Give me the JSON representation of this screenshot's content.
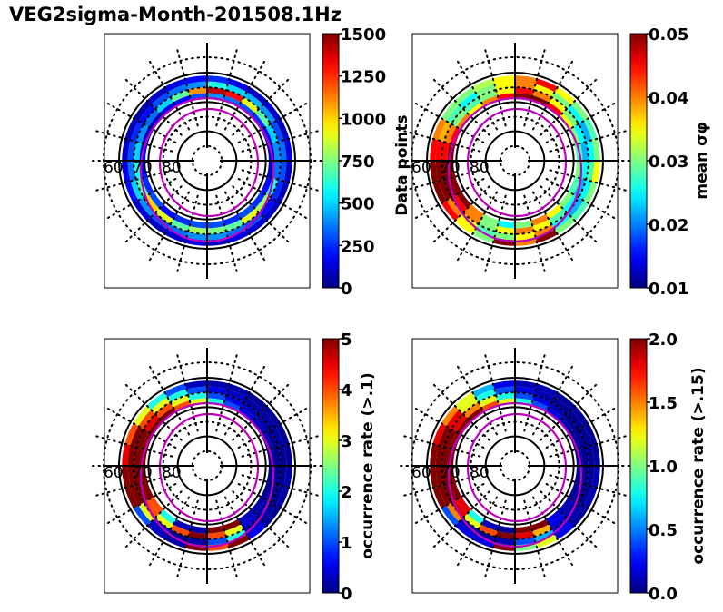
{
  "title": "VEG2sigma-Month-201508.1Hz",
  "chart_data": [
    {
      "type": "heatmap",
      "panel": "top-left",
      "projection": "polar (magnetic latitude vs MLT)",
      "latitude_labels": [
        "60",
        "70",
        "80"
      ],
      "colorbar": {
        "label": "Data points",
        "range": [
          0,
          1500
        ],
        "ticks": [
          "0",
          "250",
          "500",
          "750",
          "1000",
          "1250",
          "1500"
        ],
        "colormap": "jet",
        "position": "right"
      },
      "rings": [
        {
          "lat": 62,
          "values": [
            150,
            120,
            100,
            130,
            200,
            150,
            100,
            80,
            60,
            100,
            150,
            200,
            250,
            150,
            100,
            120,
            100,
            150,
            100,
            80,
            100,
            120,
            150,
            100
          ]
        },
        {
          "lat": 64,
          "values": [
            400,
            350,
            300,
            400,
            500,
            350,
            300,
            250,
            200,
            300,
            350,
            400,
            600,
            500,
            450,
            400,
            300,
            350,
            300,
            250,
            200,
            300,
            350,
            400
          ]
        },
        {
          "lat": 66,
          "values": [
            800,
            700,
            900,
            1000,
            700,
            600,
            500,
            400,
            350,
            500,
            700,
            1100,
            1400,
            1300,
            900,
            700,
            500,
            400,
            350,
            600,
            800,
            900,
            700,
            750
          ]
        },
        {
          "lat": 68,
          "values": [
            300,
            250,
            200,
            300,
            250,
            200,
            150,
            100,
            100,
            150,
            200,
            300,
            400,
            350,
            300,
            250,
            200,
            150,
            100,
            200,
            250,
            300,
            250,
            300
          ]
        }
      ]
    },
    {
      "type": "heatmap",
      "panel": "top-right",
      "projection": "polar (magnetic latitude vs MLT)",
      "latitude_labels": [
        "60",
        "70",
        "80"
      ],
      "colorbar": {
        "label": "mean σφ",
        "range": [
          0.01,
          0.05
        ],
        "ticks": [
          "0.01",
          "0.02",
          "0.03",
          "0.04",
          "0.05"
        ],
        "colormap": "jet",
        "position": "right"
      },
      "rings": [
        {
          "lat": 62,
          "values": [
            0.05,
            0.03,
            0.035,
            0.045,
            0.05,
            0.05,
            0.045,
            0.04,
            0.03,
            0.03,
            0.032,
            0.035,
            0.04,
            0.045,
            0.035,
            0.03,
            0.028,
            0.03,
            0.035,
            0.03,
            0.028,
            0.03,
            0.05,
            0.04
          ]
        },
        {
          "lat": 64,
          "values": [
            0.03,
            0.028,
            0.035,
            0.04,
            0.05,
            0.05,
            0.045,
            0.038,
            0.028,
            0.025,
            0.03,
            0.035,
            0.04,
            0.035,
            0.03,
            0.025,
            0.022,
            0.025,
            0.028,
            0.025,
            0.022,
            0.025,
            0.04,
            0.035
          ]
        },
        {
          "lat": 66,
          "values": [
            0.035,
            0.03,
            0.04,
            0.045,
            0.05,
            0.05,
            0.045,
            0.04,
            0.03,
            0.028,
            0.03,
            0.035,
            0.045,
            0.04,
            0.035,
            0.03,
            0.025,
            0.022,
            0.025,
            0.022,
            0.025,
            0.028,
            0.035,
            0.04
          ]
        },
        {
          "lat": 68,
          "values": [
            0.025,
            0.03,
            0.04,
            0.05,
            0.05,
            0.05,
            0.05,
            0.045,
            0.04,
            0.035,
            0.04,
            0.045,
            0.05,
            0.05,
            0.045,
            0.035,
            0.03,
            0.028,
            0.03,
            0.028,
            0.03,
            0.035,
            0.04,
            0.03
          ]
        }
      ]
    },
    {
      "type": "heatmap",
      "panel": "bottom-left",
      "projection": "polar (magnetic latitude vs MLT)",
      "latitude_labels": [
        "60",
        "70",
        "80"
      ],
      "colorbar": {
        "label": "occurrence rate (>.1)",
        "range": [
          0,
          5
        ],
        "ticks": [
          "0",
          "1",
          "2",
          "3",
          "4",
          "5"
        ],
        "colormap": "jet",
        "position": "right"
      },
      "rings": [
        {
          "lat": 62,
          "values": [
            5,
            0.2,
            0.3,
            1,
            5,
            5,
            4.5,
            4,
            3,
            2,
            1,
            0.3,
            0.2,
            0.2,
            0.1,
            0.1,
            0.1,
            0.1,
            0.2,
            0.2,
            0.1,
            0.5,
            5,
            4
          ]
        },
        {
          "lat": 64,
          "values": [
            0.2,
            0.1,
            0.3,
            3,
            5,
            5,
            5,
            5,
            4,
            3,
            2,
            1,
            0.5,
            0.3,
            0.2,
            0.2,
            0.2,
            0.1,
            0.1,
            0.1,
            0.2,
            0.3,
            2,
            1
          ]
        },
        {
          "lat": 66,
          "values": [
            5,
            4,
            3,
            4,
            5,
            5,
            5,
            5,
            4.5,
            4,
            3,
            2,
            1,
            0.5,
            0.3,
            0.2,
            0.1,
            0.1,
            0.1,
            0.1,
            0.2,
            0.4,
            3,
            4
          ]
        },
        {
          "lat": 68,
          "values": [
            0.2,
            0.3,
            2,
            4,
            5,
            5,
            5,
            5,
            5,
            5,
            4,
            3,
            2,
            1,
            0.5,
            0.3,
            0.2,
            0.1,
            0.1,
            0.1,
            0.2,
            0.3,
            5,
            5
          ]
        }
      ]
    },
    {
      "type": "heatmap",
      "panel": "bottom-right",
      "projection": "polar (magnetic latitude vs MLT)",
      "latitude_labels": [
        "60",
        "70",
        "80"
      ],
      "colorbar": {
        "label": "occurrence rate (>.15)",
        "range": [
          0.0,
          2.0
        ],
        "ticks": [
          "0.0",
          "0.5",
          "1.0",
          "1.5",
          "2.0"
        ],
        "colormap": "jet",
        "position": "right"
      },
      "rings": [
        {
          "lat": 62,
          "values": [
            2,
            0.2,
            0.2,
            0.4,
            2,
            2,
            2,
            1.8,
            1.5,
            1.2,
            0.6,
            0.2,
            0.1,
            0.1,
            0.05,
            0.05,
            0.05,
            0.05,
            0.1,
            0.1,
            0.05,
            0.2,
            1.2,
            1.0
          ]
        },
        {
          "lat": 64,
          "values": [
            0.1,
            0.05,
            0.1,
            1.5,
            2,
            2,
            2,
            2,
            1.8,
            1.2,
            0.8,
            0.4,
            0.2,
            0.1,
            0.05,
            0.05,
            0.05,
            0.05,
            0.05,
            0.05,
            0.1,
            0.2,
            0.6,
            0.4
          ]
        },
        {
          "lat": 66,
          "values": [
            2,
            1.6,
            1.2,
            1.8,
            2,
            2,
            2,
            2,
            1.8,
            1.5,
            1.2,
            0.8,
            0.4,
            0.2,
            0.1,
            0.05,
            0.05,
            0.05,
            0.05,
            0.05,
            0.1,
            0.2,
            1.4,
            1.8
          ]
        },
        {
          "lat": 68,
          "values": [
            0.05,
            0.1,
            0.8,
            1.8,
            2,
            2,
            2,
            2,
            2,
            2,
            1.6,
            1.2,
            0.8,
            0.4,
            0.2,
            0.1,
            0.05,
            0.05,
            0.05,
            0.05,
            0.1,
            0.2,
            2,
            2
          ]
        }
      ]
    }
  ]
}
